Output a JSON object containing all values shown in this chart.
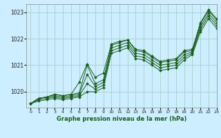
{
  "title": "Graphe pression niveau de la mer (hPa)",
  "background_color": "#cceeff",
  "grid_color": "#aacccc",
  "line_color": "#1a5c1a",
  "marker_color": "#1a5c1a",
  "xlim": [
    -0.5,
    23
  ],
  "ylim": [
    1019.4,
    1023.3
  ],
  "yticks": [
    1020,
    1021,
    1022,
    1023
  ],
  "xticks": [
    0,
    1,
    2,
    3,
    4,
    5,
    6,
    7,
    8,
    9,
    10,
    11,
    12,
    13,
    14,
    15,
    16,
    17,
    18,
    19,
    20,
    21,
    22,
    23
  ],
  "series": [
    [
      1019.55,
      1019.75,
      1019.8,
      1019.9,
      1019.85,
      1019.9,
      1019.95,
      1021.0,
      1020.3,
      1020.45,
      1021.75,
      1021.85,
      1021.95,
      1021.55,
      1021.5,
      1021.3,
      1021.1,
      1021.15,
      1021.2,
      1021.5,
      1021.55,
      1022.55,
      1023.05,
      1022.7
    ],
    [
      1019.55,
      1019.75,
      1019.8,
      1019.85,
      1019.8,
      1019.85,
      1019.9,
      1020.65,
      1020.2,
      1020.35,
      1021.65,
      1021.75,
      1021.85,
      1021.45,
      1021.4,
      1021.2,
      1021.0,
      1021.05,
      1021.1,
      1021.4,
      1021.5,
      1022.45,
      1022.95,
      1022.6
    ],
    [
      1019.55,
      1019.7,
      1019.75,
      1019.8,
      1019.75,
      1019.8,
      1019.85,
      1020.3,
      1020.1,
      1020.25,
      1021.55,
      1021.65,
      1021.75,
      1021.35,
      1021.3,
      1021.1,
      1020.9,
      1020.95,
      1021.0,
      1021.3,
      1021.45,
      1022.35,
      1022.85,
      1022.5
    ],
    [
      1019.55,
      1019.65,
      1019.7,
      1019.75,
      1019.7,
      1019.75,
      1019.8,
      1020.0,
      1020.0,
      1020.15,
      1021.45,
      1021.55,
      1021.65,
      1021.25,
      1021.2,
      1021.0,
      1020.8,
      1020.85,
      1020.9,
      1021.2,
      1021.4,
      1022.25,
      1022.75,
      1022.4
    ]
  ],
  "peak_series": [
    1019.55,
    1019.75,
    1019.8,
    1019.9,
    1019.85,
    1019.9,
    1020.35,
    1021.05,
    1020.55,
    1020.7,
    1021.8,
    1021.9,
    1021.95,
    1021.6,
    1021.55,
    1021.35,
    1021.15,
    1021.2,
    1021.25,
    1021.55,
    1021.6,
    1022.6,
    1023.1,
    1022.75
  ]
}
